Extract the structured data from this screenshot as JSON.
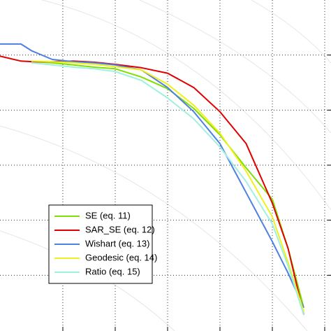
{
  "chart_data": {
    "type": "line",
    "x": [
      0.38,
      0.42,
      0.44,
      0.48,
      0.52,
      0.56,
      0.6,
      0.65,
      0.7,
      0.75,
      0.8,
      0.85,
      0.9,
      0.93,
      0.96
    ],
    "series": [
      {
        "name": "SE (eq. 11)",
        "color": "#7fe000",
        "values": [
          null,
          null,
          0.788,
          0.786,
          0.782,
          0.778,
          0.775,
          0.76,
          0.739,
          0.703,
          0.655,
          0.595,
          0.538,
          0.449,
          0.341
        ]
      },
      {
        "name": "SAR_SE (eq. 12)",
        "color": "#e00000",
        "values": [
          0.798,
          0.789,
          0.788,
          0.788,
          0.789,
          0.787,
          0.783,
          0.777,
          0.767,
          0.741,
          0.697,
          0.639,
          0.531,
          0.449,
          0.328
        ]
      },
      {
        "name": "Wishart (eq. 13)",
        "color": "#4f7fe0",
        "values": [
          0.82,
          0.82,
          0.808,
          0.792,
          0.788,
          0.786,
          0.782,
          0.773,
          0.741,
          0.697,
          0.639,
          0.55,
          0.461,
          0.404,
          0.341
        ]
      },
      {
        "name": "Geodesic (eq. 14)",
        "color": "#f0f020",
        "values": [
          null,
          null,
          0.789,
          0.788,
          0.786,
          0.783,
          0.779,
          0.773,
          0.747,
          0.709,
          0.658,
          0.589,
          0.506,
          0.423,
          0.334
        ]
      },
      {
        "name": "Ratio (eq. 15)",
        "color": "#a0f0e0",
        "values": [
          null,
          null,
          0.786,
          0.782,
          0.778,
          0.775,
          0.77,
          0.754,
          0.722,
          0.684,
          0.633,
          0.57,
          0.493,
          0.417,
          0.328
        ]
      }
    ],
    "xlim": [
      0.38,
      1.012
    ],
    "ylim": [
      0.3,
      0.9
    ],
    "xticks": [
      0.5,
      0.6,
      0.7,
      0.8,
      0.9,
      1.0
    ],
    "yticks": [
      0.4,
      0.5,
      0.6,
      0.7,
      0.8
    ],
    "grid": true,
    "legend": "lower left"
  }
}
